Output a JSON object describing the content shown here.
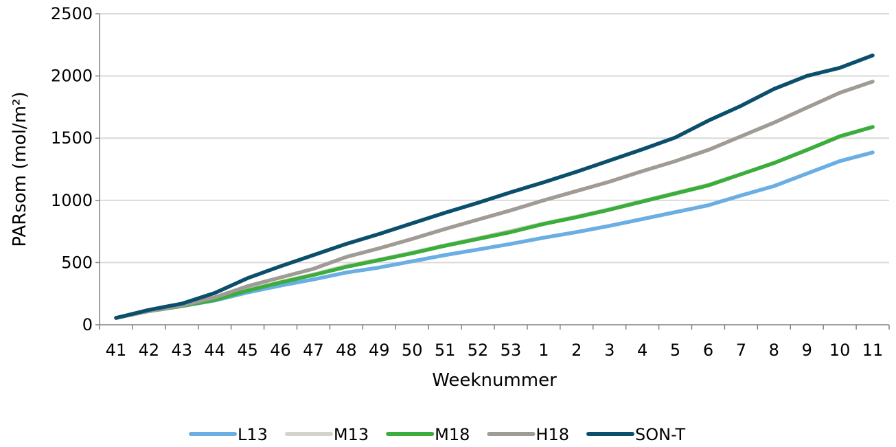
{
  "chart_data": {
    "type": "line",
    "xlabel": "Weeknummer",
    "ylabel": "PARsom (mol/m²)",
    "ylim": [
      0,
      2500
    ],
    "yticks": [
      "0",
      "500",
      "1000",
      "1500",
      "2000",
      "2500"
    ],
    "categories": [
      "41",
      "42",
      "43",
      "44",
      "45",
      "46",
      "47",
      "48",
      "49",
      "50",
      "51",
      "52",
      "53",
      "1",
      "2",
      "3",
      "4",
      "5",
      "6",
      "7",
      "8",
      "9",
      "10",
      "11"
    ],
    "grid": "horizontal",
    "legend_position": "bottom",
    "series": [
      {
        "name": "L13",
        "color": "#6aaee3",
        "values": [
          55,
          110,
          150,
          195,
          260,
          315,
          365,
          420,
          460,
          510,
          560,
          605,
          650,
          700,
          745,
          795,
          850,
          905,
          960,
          1040,
          1115,
          1215,
          1315,
          1385
        ]
      },
      {
        "name": "M13",
        "color": "#d6d3cc",
        "values": [
          55,
          110,
          150,
          205,
          280,
          345,
          405,
          475,
          525,
          580,
          640,
          695,
          755,
          815,
          870,
          930,
          995,
          1060,
          1125,
          1210,
          1300,
          1405,
          1510,
          1590
        ]
      },
      {
        "name": "M18",
        "color": "#3aad3a",
        "values": [
          55,
          110,
          150,
          200,
          275,
          340,
          400,
          465,
          520,
          575,
          635,
          690,
          745,
          810,
          865,
          925,
          990,
          1055,
          1120,
          1210,
          1300,
          1405,
          1515,
          1590
        ]
      },
      {
        "name": "H18",
        "color": "#a09c95",
        "values": [
          55,
          110,
          155,
          220,
          310,
          380,
          450,
          545,
          615,
          690,
          770,
          845,
          920,
          1000,
          1075,
          1150,
          1235,
          1315,
          1405,
          1515,
          1625,
          1745,
          1865,
          1955
        ]
      },
      {
        "name": "SON-T",
        "color": "#0b4f6c",
        "values": [
          55,
          120,
          170,
          255,
          375,
          470,
          560,
          650,
          730,
          815,
          900,
          980,
          1065,
          1145,
          1230,
          1320,
          1410,
          1505,
          1640,
          1760,
          1895,
          2000,
          2065,
          2165
        ]
      }
    ]
  }
}
